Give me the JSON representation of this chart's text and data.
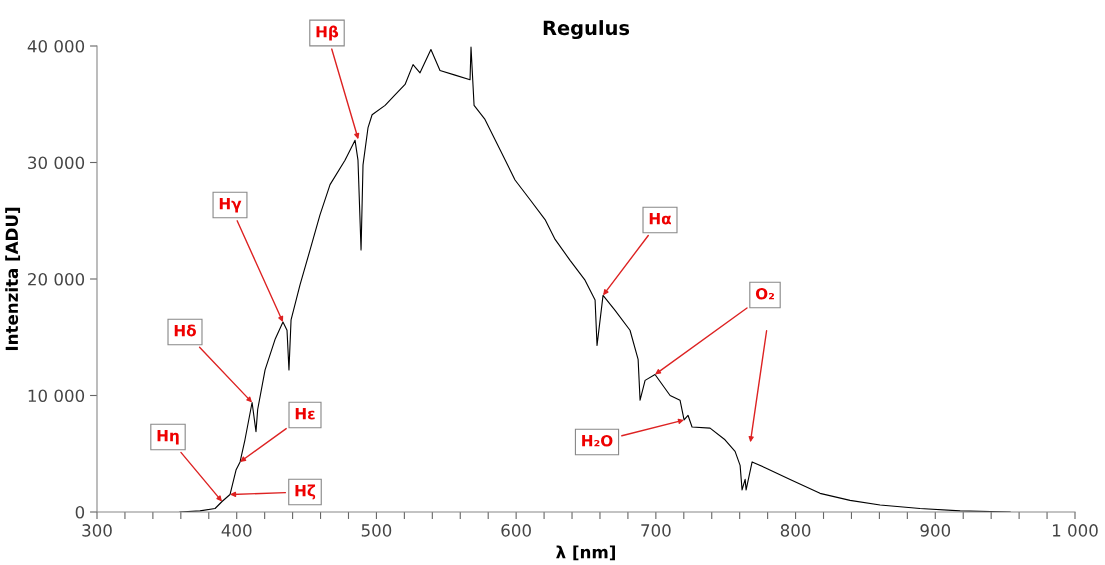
{
  "chart_data": {
    "type": "line",
    "title": "Regulus",
    "xlabel": "λ [nm]",
    "ylabel": "Intenzita [ADU]",
    "x": [
      359.4,
      373.7,
      384.5,
      389.5,
      395.2,
      399.5,
      402.4,
      405.9,
      411,
      413.8,
      415,
      420.3,
      427.4,
      433.1,
      436,
      437.4,
      438.9,
      445.3,
      452.5,
      459.6,
      466.8,
      477.5,
      484.7,
      486.8,
      489,
      490.4,
      494,
      496.9,
      506.2,
      513.3,
      520.5,
      526.2,
      531.2,
      539,
      545.5,
      556.3,
      567,
      567.7,
      569.9,
      577.7,
      588.5,
      599.2,
      610,
      620.7,
      627.9,
      638.6,
      649.3,
      656.5,
      657.9,
      662.2,
      670.8,
      681.5,
      687.3,
      688.7,
      692.3,
      699.4,
      710.2,
      717.3,
      720.2,
      723,
      725.9,
      738.8,
      749.5,
      756.7,
      760.3,
      761.7,
      763.9,
      764.6,
      768.9,
      778.2,
      796.1,
      817.5,
      839,
      860.5,
      889.1,
      917.8,
      953.6
    ],
    "series": [
      {
        "color": "#000000",
        "values": [
          0,
          100,
          300,
          900,
          1500,
          3600,
          4300,
          6200,
          9400,
          6900,
          8800,
          12200,
          14800,
          16300,
          15600,
          12200,
          16500,
          19500,
          22500,
          25500,
          28100,
          30200,
          31900,
          30200,
          22500,
          29800,
          33000,
          34100,
          34900,
          35800,
          36700,
          38400,
          37700,
          39700,
          37900,
          37500,
          37100,
          39900,
          34900,
          33700,
          31100,
          28500,
          26800,
          25100,
          23400,
          21600,
          19900,
          18200,
          14300,
          18600,
          17300,
          15600,
          13100,
          9600,
          11300,
          11800,
          10000,
          9600,
          7900,
          8300,
          7300,
          7200,
          6200,
          5200,
          4000,
          1900,
          2800,
          1900,
          4300,
          3800,
          2800,
          1600,
          1000,
          600,
          300,
          100,
          0
        ]
      }
    ],
    "xlim": [
      300,
      1000
    ],
    "ylim": [
      0,
      40000
    ],
    "xticks": [
      300,
      {
        "value": 320,
        "label": null
      },
      {
        "value": 340,
        "label": null
      },
      {
        "value": 360,
        "label": null
      },
      {
        "value": 380,
        "label": null
      },
      400,
      {
        "value": 420,
        "label": null
      },
      {
        "value": 440,
        "label": null
      },
      {
        "value": 460,
        "label": null
      },
      {
        "value": 480,
        "label": null
      },
      500,
      {
        "value": 520,
        "label": null
      },
      {
        "value": 540,
        "label": null
      },
      {
        "value": 560,
        "label": null
      },
      {
        "value": 580,
        "label": null
      },
      600,
      {
        "value": 620,
        "label": null
      },
      {
        "value": 640,
        "label": null
      },
      {
        "value": 660,
        "label": null
      },
      {
        "value": 680,
        "label": null
      },
      700,
      {
        "value": 720,
        "label": null
      },
      {
        "value": 740,
        "label": null
      },
      {
        "value": 760,
        "label": null
      },
      {
        "value": 780,
        "label": null
      },
      800,
      {
        "value": 820,
        "label": null
      },
      {
        "value": 840,
        "label": null
      },
      {
        "value": 860,
        "label": null
      },
      {
        "value": 880,
        "label": null
      },
      900,
      {
        "value": 920,
        "label": null
      },
      {
        "value": 940,
        "label": null
      },
      {
        "value": 960,
        "label": null
      },
      {
        "value": 980,
        "label": null
      },
      {
        "value": 1000,
        "label": "1 000"
      }
    ],
    "yticks": [
      0,
      {
        "value": 10000,
        "label": "10 000"
      },
      {
        "value": 20000,
        "label": "20 000"
      },
      {
        "value": 30000,
        "label": "30 000"
      },
      {
        "value": 40000,
        "label": "40 000"
      }
    ],
    "annotations": [
      {
        "text": "Hβ",
        "x": 487,
        "y": 32000
      },
      {
        "text": "Hγ",
        "x": 433.1,
        "y": 16300
      },
      {
        "text": "Hδ",
        "x": 411,
        "y": 9400
      },
      {
        "text": "Hε",
        "x": 402.4,
        "y": 4300
      },
      {
        "text": "Hη",
        "x": 389.5,
        "y": 900
      },
      {
        "text": "Hζ",
        "x": 395.2,
        "y": 1500
      },
      {
        "text": "Hα",
        "x": 662.2,
        "y": 18600
      },
      {
        "text": "O₂",
        "x": 699.4,
        "y": 11800
      },
      {
        "text": "H₂O",
        "x": 720.2,
        "y": 7900
      }
    ],
    "grid": false,
    "legend": false,
    "marker": "none",
    "line_style": "solid"
  }
}
